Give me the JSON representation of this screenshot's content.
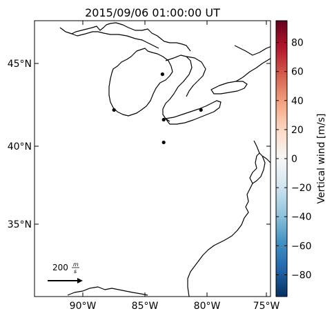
{
  "title": "2015/09/06 01:00:00 UT",
  "lat_labels": [
    "45°N",
    "40°N",
    "35°N"
  ],
  "lon_labels": [
    "90°W",
    "85°W",
    "80°W",
    "75°W"
  ],
  "colorbar": {
    "label": "Vertical wind [m/s]",
    "ticks": [
      "80",
      "60",
      "40",
      "20",
      "0",
      "−20",
      "−40",
      "−60",
      "−80"
    ],
    "range": [
      -95,
      95
    ],
    "colormap": "RdBu_r",
    "colors": [
      "#053061",
      "#2166ac",
      "#4393c3",
      "#92c5de",
      "#d1e5f0",
      "#f7f7f7",
      "#fddbc7",
      "#f4a582",
      "#d6604d",
      "#b2182b",
      "#67001f"
    ]
  },
  "scale_arrow": {
    "value": "200",
    "unit_num": "m",
    "unit_den": "s"
  },
  "map": {
    "extent_lon": [
      -94,
      -75
    ],
    "extent_lat": [
      30.5,
      47.5
    ],
    "coast_color": "#000000",
    "sites": [
      {
        "lon": -87.6,
        "lat": 42.0
      },
      {
        "lon": -83.7,
        "lat": 44.2
      },
      {
        "lon": -83.6,
        "lat": 41.4
      },
      {
        "lon": -80.6,
        "lat": 42.0
      },
      {
        "lon": -83.6,
        "lat": 40.0
      }
    ]
  }
}
